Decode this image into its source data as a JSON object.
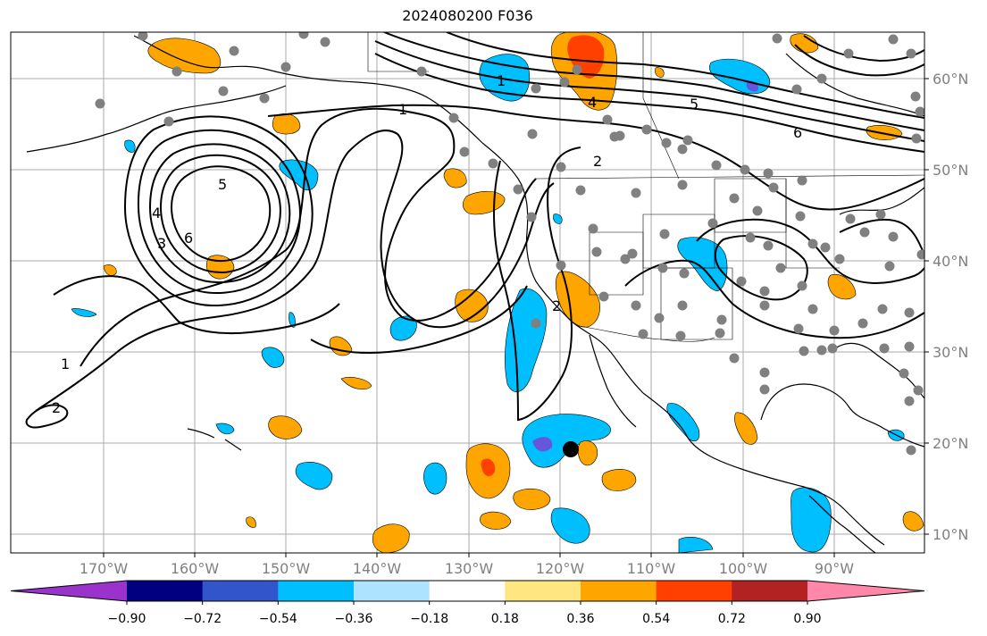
{
  "title": "2024080200 F036",
  "map": {
    "lon_ticks": [
      "170°W",
      "160°W",
      "150°W",
      "140°W",
      "130°W",
      "120°W",
      "110°W",
      "100°W",
      "90°W"
    ],
    "lat_ticks": [
      "60°N",
      "50°N",
      "40°N",
      "30°N",
      "20°N",
      "10°N"
    ],
    "contour_labels": [
      "1",
      "2",
      "3",
      "4",
      "5",
      "6",
      "1",
      "2",
      "4",
      "5",
      "6",
      "1",
      "2"
    ],
    "station_color": "#808080",
    "contour_color": "#000000"
  },
  "colorbar": {
    "tick_labels": [
      "−0.90",
      "−0.72",
      "−0.54",
      "−0.36",
      "−0.18",
      "0.18",
      "0.36",
      "0.54",
      "0.72",
      "0.90"
    ],
    "colors": [
      "#9933cc",
      "#000080",
      "#3355cc",
      "#00bfff",
      "#aee3ff",
      "#ffffff",
      "#ffe680",
      "#ffa500",
      "#ff4000",
      "#b22222",
      "#ff88aa",
      "#ff88aa"
    ]
  }
}
